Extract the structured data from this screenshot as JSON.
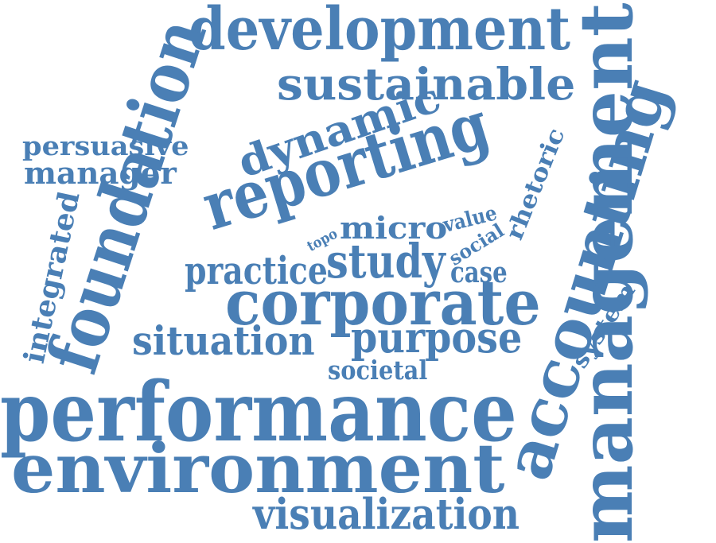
{
  "color": "#4a7fb5",
  "words": {
    "development": "development",
    "sustainable": "sustainable",
    "dynamic": "dynamic",
    "persuasive": "persuasive",
    "manager": "manager",
    "reporting": "reporting",
    "foundation": "foundation",
    "integrated": "integrated",
    "micro": "micro",
    "value": "value",
    "topo": "topo",
    "practice": "practice",
    "study": "study",
    "social": "social",
    "case": "case",
    "rhetoric": "rhetoric",
    "corporate": "corporate",
    "situation": "situation",
    "purpose": "purpose",
    "societal": "societal",
    "system": "system",
    "accounting": "accounting",
    "management": "management",
    "performance": "performance",
    "environment": "environment",
    "visualization": "visualization"
  }
}
